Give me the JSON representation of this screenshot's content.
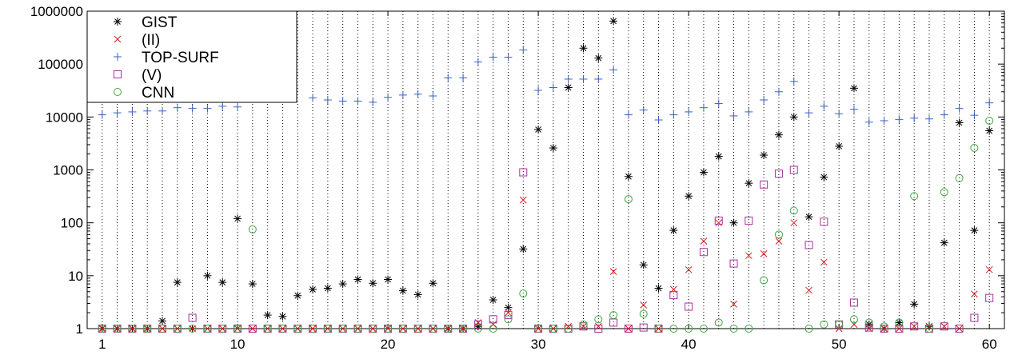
{
  "chart_data": {
    "type": "scatter",
    "title": "",
    "xlabel": "",
    "ylabel": "",
    "xlim": [
      0,
      61
    ],
    "ylim": [
      1,
      1000000
    ],
    "yscale": "log",
    "grid": "vertical dotted",
    "legend_position": "top-left",
    "xticks": [
      1,
      10,
      20,
      30,
      40,
      50,
      60
    ],
    "xtick_labels": [
      "1",
      "10",
      "20",
      "30",
      "40",
      "50",
      "60"
    ],
    "yticks": [
      1,
      10,
      100,
      1000,
      10000,
      100000,
      1000000
    ],
    "ytick_labels": [
      "1",
      "10",
      "100",
      "1000",
      "10000",
      "100000",
      "1000000"
    ],
    "x": [
      1,
      2,
      3,
      4,
      5,
      6,
      7,
      8,
      9,
      10,
      11,
      12,
      13,
      14,
      15,
      16,
      17,
      18,
      19,
      20,
      21,
      22,
      23,
      24,
      25,
      26,
      27,
      28,
      29,
      30,
      31,
      32,
      33,
      34,
      35,
      36,
      37,
      38,
      39,
      40,
      41,
      42,
      43,
      44,
      45,
      46,
      47,
      48,
      49,
      50,
      51,
      52,
      53,
      54,
      55,
      56,
      57,
      58,
      59,
      60
    ],
    "series": [
      {
        "name": "GIST",
        "marker": "asterisk",
        "color": "#000000",
        "values": [
          1,
          1,
          1,
          1,
          1.4,
          7.5,
          1,
          10,
          7.5,
          120,
          7,
          1.8,
          1.7,
          4.2,
          5.5,
          5.8,
          7,
          8.5,
          7.2,
          8.5,
          5.2,
          4.4,
          7.2,
          1,
          1,
          1.1,
          3.5,
          2.5,
          32,
          5800,
          2600,
          36000,
          200000,
          130000,
          650000,
          750,
          16,
          5.8,
          72,
          320,
          900,
          1800,
          100,
          560,
          1900,
          4600,
          10000,
          130,
          730,
          2800,
          35000,
          1.2,
          1,
          1.3,
          2.9,
          1.1,
          42,
          7800,
          72,
          5500
        ]
      },
      {
        "name": "(II)",
        "marker": "cross",
        "color": "#e0191c",
        "values": [
          1,
          1,
          1,
          1,
          1,
          1,
          1,
          1,
          1,
          1,
          1,
          1,
          1,
          1,
          1,
          1,
          1,
          1,
          1,
          1,
          1,
          1,
          1,
          1,
          1,
          1.3,
          1.2,
          2,
          270,
          1,
          1,
          1.1,
          1.1,
          1.1,
          12,
          1,
          2.8,
          1,
          5.5,
          13,
          45,
          100,
          2.9,
          24,
          26,
          45,
          100,
          5.3,
          18,
          1,
          1.2,
          1,
          1,
          1,
          1.1,
          1.1,
          1.1,
          1,
          4.5,
          13
        ]
      },
      {
        "name": "TOP-SURF",
        "marker": "plus",
        "color": "#3a63b8",
        "values": [
          11000,
          12000,
          12500,
          13000,
          13000,
          15000,
          14500,
          14500,
          16000,
          15500,
          null,
          null,
          null,
          null,
          23000,
          21000,
          20000,
          20000,
          19000,
          23500,
          26000,
          27000,
          25000,
          55000,
          55000,
          110000,
          135000,
          135000,
          185000,
          32000,
          36000,
          52000,
          52000,
          52000,
          78000,
          11000,
          13500,
          8800,
          11000,
          12500,
          15000,
          18000,
          10500,
          12500,
          21000,
          30000,
          47000,
          12000,
          16000,
          11500,
          14000,
          8000,
          8500,
          9000,
          9500,
          9200,
          11000,
          14500,
          10800,
          18500
        ]
      },
      {
        "name": "(V)",
        "marker": "square",
        "color": "#a8329a",
        "values": [
          1,
          1,
          1,
          1,
          1,
          1,
          1.6,
          1,
          1,
          1,
          1,
          1,
          1,
          1,
          1,
          1,
          1,
          1,
          1,
          1,
          1,
          1,
          1,
          1,
          1,
          1.2,
          1.5,
          1.8,
          900,
          1,
          1,
          1,
          1.1,
          1,
          1.3,
          1,
          1.05,
          1,
          4.3,
          2.6,
          28,
          110,
          17,
          110,
          530,
          850,
          1000,
          38,
          105,
          1.2,
          3.1,
          1.05,
          1,
          1,
          1.1,
          1,
          1.1,
          1,
          1.6,
          3.8
        ]
      },
      {
        "name": "CNN",
        "marker": "circle",
        "color": "#3aa83a",
        "values": [
          1,
          1,
          1,
          1,
          1,
          1,
          1,
          1,
          1,
          1,
          75,
          1,
          1,
          1,
          1,
          1,
          1,
          1,
          1,
          1,
          1,
          1,
          1,
          1,
          1,
          1,
          1,
          1.5,
          4.6,
          1,
          1,
          1,
          1.2,
          1.5,
          1.8,
          280,
          1.9,
          1,
          1,
          1,
          1,
          1.3,
          1,
          1,
          8.2,
          60,
          170,
          1,
          1.2,
          1.2,
          1.5,
          1.3,
          1.1,
          1.3,
          320,
          1,
          380,
          700,
          2600,
          8500
        ]
      }
    ]
  }
}
